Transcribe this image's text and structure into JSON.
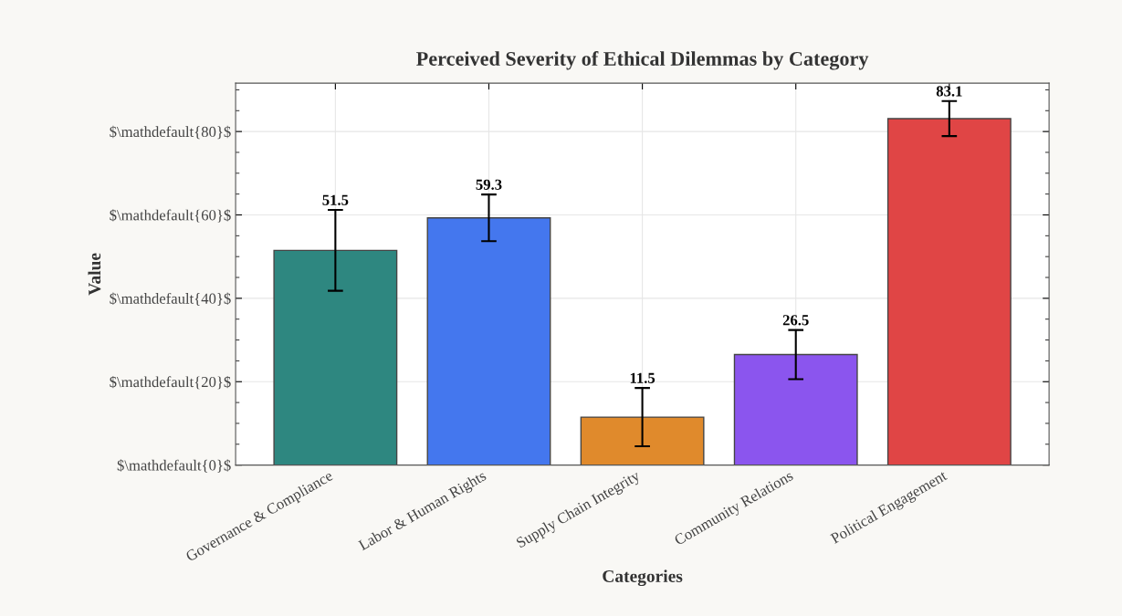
{
  "chart_data": {
    "type": "bar",
    "title": "Perceived Severity of Ethical Dilemmas by Category",
    "xlabel": "Categories",
    "ylabel": "Value",
    "categories": [
      "Governance & Compliance",
      "Labor & Human Rights",
      "Supply Chain Integrity",
      "Community Relations",
      "Political Engagement"
    ],
    "values": [
      51.5,
      59.3,
      11.5,
      26.5,
      83.1
    ],
    "colors": [
      "#2e8780",
      "#4477ee",
      "#e08a2c",
      "#8b55ee",
      "#e04545"
    ],
    "errors": [
      9.7,
      5.6,
      7.0,
      5.9,
      4.2
    ],
    "data_labels": true,
    "ylim": [
      0,
      91.6
    ],
    "yticks": [
      {
        "value": 0,
        "label": "$\\mathdefault{0}$"
      },
      {
        "value": 20,
        "label": "$\\mathdefault{20}$"
      },
      {
        "value": 40,
        "label": "$\\mathdefault{40}$"
      },
      {
        "value": 60,
        "label": "$\\mathdefault{60}$"
      },
      {
        "value": 80,
        "label": "$\\mathdefault{80}$"
      }
    ],
    "grid": true
  }
}
